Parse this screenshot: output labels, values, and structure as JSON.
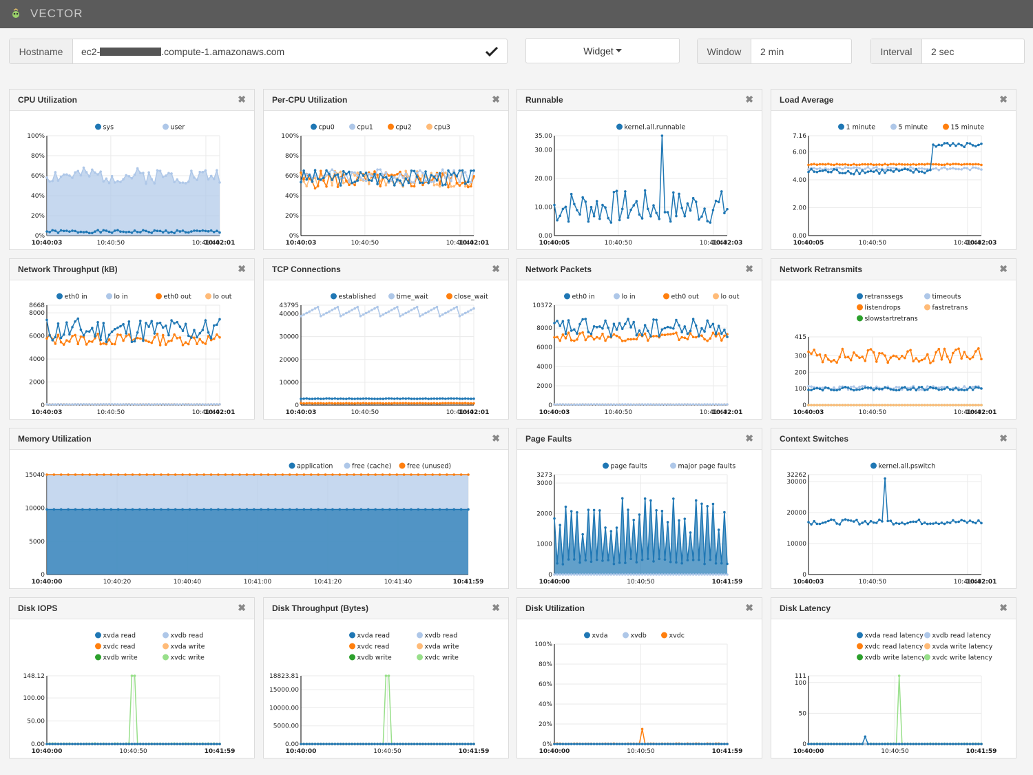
{
  "app": {
    "title": "VECTOR"
  },
  "controls": {
    "hostname_label": "Hostname",
    "hostname_prefix": "ec2-",
    "hostname_suffix": ".compute-1.amazonaws.com",
    "widget_label": "Widget",
    "window_label": "Window",
    "window_value": "2 min",
    "interval_label": "Interval",
    "interval_value": "2 sec"
  },
  "colors": {
    "blue": "#1f77b4",
    "lightblue": "#aec7e8",
    "orange": "#ff7f0e",
    "peach": "#ffbb78",
    "green": "#2ca02c",
    "lightgreen": "#98df8a"
  },
  "panels": [
    {
      "title": "CPU Utilization"
    },
    {
      "title": "Per-CPU Utilization"
    },
    {
      "title": "Runnable"
    },
    {
      "title": "Load Average"
    },
    {
      "title": "Network Throughput (kB)"
    },
    {
      "title": "TCP Connections"
    },
    {
      "title": "Network Packets"
    },
    {
      "title": "Network Retransmits"
    },
    {
      "title": "Memory Utilization"
    },
    {
      "title": "Page Faults"
    },
    {
      "title": "Context Switches"
    },
    {
      "title": "Disk IOPS"
    },
    {
      "title": "Disk Throughput (Bytes)"
    },
    {
      "title": "Disk Utilization"
    },
    {
      "title": "Disk Latency"
    }
  ],
  "close_glyph": "✖",
  "chart_data": [
    {
      "type": "area",
      "title": "CPU Utilization",
      "ylim": [
        0,
        1
      ],
      "y_ticks": [
        "0%",
        "20%",
        "40%",
        "60%",
        "80%",
        "100%"
      ],
      "y_tick_values": [
        0,
        0.2,
        0.4,
        0.6,
        0.8,
        1.0
      ],
      "x_ticks": [
        "10:40:03",
        "10:40:50",
        "10:41:40",
        "10:42:01"
      ],
      "series": [
        {
          "name": "sys",
          "color": "#1f77b4",
          "base": 0.04,
          "amp": 0.015,
          "seed": 1
        },
        {
          "name": "user",
          "color": "#aec7e8",
          "base": 0.6,
          "amp": 0.08,
          "seed": 2,
          "stacked_area": true
        }
      ]
    },
    {
      "type": "line",
      "title": "Per-CPU Utilization",
      "ylim": [
        0,
        1
      ],
      "y_ticks": [
        "0%",
        "20%",
        "40%",
        "60%",
        "80%",
        "100%"
      ],
      "y_tick_values": [
        0,
        0.2,
        0.4,
        0.6,
        0.8,
        1.0
      ],
      "x_ticks": [
        "10:40:03",
        "10:40:50",
        "10:41:40",
        "10:42:01"
      ],
      "series": [
        {
          "name": "cpu0",
          "color": "#1f77b4",
          "base": 0.58,
          "amp": 0.08,
          "seed": 3
        },
        {
          "name": "cpu1",
          "color": "#aec7e8",
          "base": 0.6,
          "amp": 0.07,
          "seed": 4
        },
        {
          "name": "cpu2",
          "color": "#ff7f0e",
          "base": 0.56,
          "amp": 0.09,
          "seed": 5
        },
        {
          "name": "cpu3",
          "color": "#ffbb78",
          "base": 0.57,
          "amp": 0.08,
          "seed": 6
        }
      ]
    },
    {
      "type": "line",
      "title": "Runnable",
      "ylim": [
        0,
        35
      ],
      "y_ticks": [
        "0.00",
        "10.00",
        "20.00",
        "30.00",
        "35.00"
      ],
      "y_tick_values": [
        0,
        10,
        20,
        30,
        35
      ],
      "x_ticks": [
        "10:40:05",
        "10:40:50",
        "10:41:40",
        "10:42:03"
      ],
      "series": [
        {
          "name": "kernel.all.runnable",
          "color": "#1f77b4",
          "base": 10,
          "amp": 6,
          "seed": 7,
          "spike": [
            0.62,
            35
          ]
        }
      ]
    },
    {
      "type": "line",
      "title": "Load Average",
      "ylim": [
        0,
        7.16
      ],
      "y_ticks": [
        "0.00",
        "2.00",
        "4.00",
        "6.00",
        "7.16"
      ],
      "y_tick_values": [
        0,
        2,
        4,
        6,
        7.16
      ],
      "x_ticks": [
        "10:40:05",
        "10:40:50",
        "10:41:40",
        "10:42:03"
      ],
      "series": [
        {
          "name": "1 minute",
          "color": "#1f77b4",
          "base": 4.6,
          "amp": 0.2,
          "seed": 8,
          "step": [
            0.72,
            6.5
          ]
        },
        {
          "name": "5 minute",
          "color": "#aec7e8",
          "base": 4.8,
          "amp": 0.1,
          "seed": 9
        },
        {
          "name": "15 minute",
          "color": "#ff7f0e",
          "base": 5.1,
          "amp": 0.04,
          "seed": 10
        }
      ]
    },
    {
      "type": "line",
      "title": "Network Throughput (kB)",
      "ylim": [
        0,
        8668
      ],
      "y_ticks": [
        "0",
        "2000",
        "4000",
        "6000",
        "8000",
        "8668"
      ],
      "y_tick_values": [
        0,
        2000,
        4000,
        6000,
        8000,
        8668
      ],
      "x_ticks": [
        "10:40:03",
        "10:40:50",
        "10:41:40",
        "10:42:01"
      ],
      "series": [
        {
          "name": "eth0 in",
          "color": "#1f77b4",
          "base": 6500,
          "amp": 1100,
          "seed": 11
        },
        {
          "name": "lo in",
          "color": "#aec7e8",
          "base": 60,
          "amp": 10,
          "seed": 12
        },
        {
          "name": "eth0 out",
          "color": "#ff7f0e",
          "base": 5700,
          "amp": 500,
          "seed": 13
        },
        {
          "name": "lo out",
          "color": "#ffbb78",
          "base": 60,
          "amp": 10,
          "seed": 14
        }
      ]
    },
    {
      "type": "line",
      "title": "TCP Connections",
      "ylim": [
        0,
        43795
      ],
      "y_ticks": [
        "0",
        "10000",
        "20000",
        "30000",
        "40000",
        "43795"
      ],
      "y_tick_values": [
        0,
        10000,
        20000,
        30000,
        40000,
        43795
      ],
      "x_ticks": [
        "10:40:03",
        "10:40:50",
        "10:41:40",
        "10:42:01"
      ],
      "series": [
        {
          "name": "established",
          "color": "#1f77b4",
          "base": 2800,
          "amp": 100,
          "seed": 15
        },
        {
          "name": "time_wait",
          "color": "#aec7e8",
          "base": 41000,
          "amp": 2000,
          "seed": 16,
          "saw": true
        },
        {
          "name": "close_wait",
          "color": "#ff7f0e",
          "base": 800,
          "amp": 80,
          "seed": 17
        }
      ]
    },
    {
      "type": "line",
      "title": "Network Packets",
      "ylim": [
        0,
        10372
      ],
      "y_ticks": [
        "0",
        "2000",
        "4000",
        "6000",
        "8000",
        "10372"
      ],
      "y_tick_values": [
        0,
        2000,
        4000,
        6000,
        8000,
        10372
      ],
      "x_ticks": [
        "10:40:03",
        "10:40:50",
        "10:41:40",
        "10:42:01"
      ],
      "series": [
        {
          "name": "eth0 in",
          "color": "#1f77b4",
          "base": 8000,
          "amp": 1000,
          "seed": 18
        },
        {
          "name": "lo in",
          "color": "#aec7e8",
          "base": 60,
          "amp": 10,
          "seed": 19
        },
        {
          "name": "eth0 out",
          "color": "#ff7f0e",
          "base": 7100,
          "amp": 450,
          "seed": 20
        },
        {
          "name": "lo out",
          "color": "#ffbb78",
          "base": 60,
          "amp": 10,
          "seed": 21
        }
      ]
    },
    {
      "type": "line",
      "title": "Network Retransmits",
      "ylim": [
        0,
        415
      ],
      "y_ticks": [
        "0",
        "100",
        "200",
        "300",
        "415"
      ],
      "y_tick_values": [
        0,
        100,
        200,
        300,
        415
      ],
      "x_ticks": [
        "10:40:03",
        "10:40:50",
        "10:41:40",
        "10:42:01"
      ],
      "series": [
        {
          "name": "retranssegs",
          "color": "#1f77b4",
          "base": 100,
          "amp": 10,
          "seed": 22
        },
        {
          "name": "timeouts",
          "color": "#aec7e8",
          "base": 104,
          "amp": 12,
          "seed": 23
        },
        {
          "name": "listendrops",
          "color": "#ff7f0e",
          "base": 300,
          "amp": 45,
          "seed": 24
        },
        {
          "name": "fastretrans",
          "color": "#ffbb78",
          "base": 0,
          "amp": 0,
          "seed": 25
        },
        {
          "name": "slowstartretrans",
          "color": "#2ca02c",
          "base": 0,
          "amp": 0,
          "seed": 26
        }
      ]
    },
    {
      "type": "area",
      "title": "Memory Utilization",
      "ylim": [
        0,
        15040
      ],
      "y_ticks": [
        "0",
        "5000",
        "10000",
        "15040"
      ],
      "y_tick_values": [
        0,
        5000,
        10000,
        15040
      ],
      "x_ticks": [
        "10:40:00",
        "10:40:20",
        "10:40:40",
        "10:41:00",
        "10:41:20",
        "10:41:40",
        "10:41:59"
      ],
      "series": [
        {
          "name": "application",
          "color": "#1f77b4",
          "base": 9800,
          "amp": 0,
          "seed": 27,
          "stacked_area": true
        },
        {
          "name": "free (cache)",
          "color": "#aec7e8",
          "base": 15040,
          "amp": 0,
          "seed": 28,
          "stacked_area": true
        },
        {
          "name": "free (unused)",
          "color": "#ff7f0e",
          "base": 15040,
          "amp": 0,
          "seed": 29
        }
      ]
    },
    {
      "type": "area",
      "title": "Page Faults",
      "ylim": [
        0,
        3273
      ],
      "y_ticks": [
        "0",
        "1000",
        "2000",
        "3000",
        "3273"
      ],
      "y_tick_values": [
        0,
        1000,
        2000,
        3000,
        3273
      ],
      "x_ticks": [
        "10:40:00",
        "10:40:50",
        "10:41:59"
      ],
      "series": [
        {
          "name": "page faults",
          "color": "#1f77b4",
          "base": 1300,
          "amp": 1300,
          "seed": 30,
          "zigzag": true,
          "stacked_area": true
        },
        {
          "name": "major page faults",
          "color": "#aec7e8",
          "base": 0,
          "amp": 0,
          "seed": 31
        }
      ]
    },
    {
      "type": "line",
      "title": "Context Switches",
      "ylim": [
        0,
        32262
      ],
      "y_ticks": [
        "0",
        "10000",
        "20000",
        "30000",
        "32262"
      ],
      "y_tick_values": [
        0,
        10000,
        20000,
        30000,
        32262
      ],
      "x_ticks": [
        "10:40:03",
        "10:40:50",
        "10:41:40",
        "10:42:01"
      ],
      "series": [
        {
          "name": "kernel.all.pswitch",
          "color": "#1f77b4",
          "base": 17000,
          "amp": 800,
          "seed": 32,
          "spike": [
            0.45,
            31000
          ]
        }
      ]
    },
    {
      "type": "line",
      "title": "Disk IOPS",
      "ylim": [
        0,
        148.12
      ],
      "y_ticks": [
        "0.00",
        "50.00",
        "100.00",
        "148.12"
      ],
      "y_tick_values": [
        0,
        50,
        100,
        148.12
      ],
      "x_ticks": [
        "10:40:00",
        "10:40:50",
        "10:41:59"
      ],
      "series": [
        {
          "name": "xvda read",
          "color": "#1f77b4",
          "base": 0,
          "amp": 0,
          "seed": 33
        },
        {
          "name": "xvdb read",
          "color": "#aec7e8",
          "base": 0,
          "amp": 0,
          "seed": 34
        },
        {
          "name": "xvdc read",
          "color": "#ff7f0e",
          "base": 0,
          "amp": 0,
          "seed": 35
        },
        {
          "name": "xvda write",
          "color": "#ffbb78",
          "base": 0,
          "amp": 0,
          "seed": 36
        },
        {
          "name": "xvdb write",
          "color": "#2ca02c",
          "base": 0,
          "amp": 0,
          "seed": 37
        },
        {
          "name": "xvdc write",
          "color": "#98df8a",
          "base": 0.5,
          "amp": 0.5,
          "seed": 38,
          "spike": [
            0.5,
            148.12
          ]
        }
      ]
    },
    {
      "type": "line",
      "title": "Disk Throughput (Bytes)",
      "ylim": [
        0,
        18823.81
      ],
      "y_ticks": [
        "0.00",
        "5000.00",
        "10000.00",
        "15000.00",
        "18823.81"
      ],
      "y_tick_values": [
        0,
        5000,
        10000,
        15000,
        18823.81
      ],
      "x_ticks": [
        "10:40:00",
        "10:40:50",
        "10:41:59"
      ],
      "series": [
        {
          "name": "xvda read",
          "color": "#1f77b4",
          "base": 0,
          "amp": 0,
          "seed": 39
        },
        {
          "name": "xvdb read",
          "color": "#aec7e8",
          "base": 0,
          "amp": 0,
          "seed": 40
        },
        {
          "name": "xvdc read",
          "color": "#ff7f0e",
          "base": 0,
          "amp": 0,
          "seed": 41
        },
        {
          "name": "xvda write",
          "color": "#ffbb78",
          "base": 0,
          "amp": 0,
          "seed": 42
        },
        {
          "name": "xvdb write",
          "color": "#2ca02c",
          "base": 0,
          "amp": 0,
          "seed": 43
        },
        {
          "name": "xvdc write",
          "color": "#98df8a",
          "base": 20,
          "amp": 20,
          "seed": 44,
          "spike": [
            0.5,
            18823.81
          ]
        }
      ]
    },
    {
      "type": "line",
      "title": "Disk Utilization",
      "ylim": [
        0,
        1
      ],
      "y_ticks": [
        "0%",
        "20%",
        "40%",
        "60%",
        "80%",
        "100%"
      ],
      "y_tick_values": [
        0,
        0.2,
        0.4,
        0.6,
        0.8,
        1.0
      ],
      "x_ticks": [
        "10:40:00",
        "10:40:50",
        "10:41:59"
      ],
      "series": [
        {
          "name": "xvda",
          "color": "#1f77b4",
          "base": 0,
          "amp": 0,
          "seed": 45
        },
        {
          "name": "xvdb",
          "color": "#aec7e8",
          "base": 0,
          "amp": 0,
          "seed": 46
        },
        {
          "name": "xvdc",
          "color": "#ff7f0e",
          "base": 0.002,
          "amp": 0.002,
          "seed": 47,
          "spike": [
            0.51,
            0.15
          ]
        }
      ]
    },
    {
      "type": "line",
      "title": "Disk Latency",
      "ylim": [
        0,
        111
      ],
      "y_ticks": [
        "0",
        "50",
        "100",
        "111"
      ],
      "y_tick_values": [
        0,
        50,
        100,
        111
      ],
      "x_ticks": [
        "10:40:00",
        "10:40:50",
        "10:41:59"
      ],
      "series": [
        {
          "name": "xvda read latency",
          "color": "#1f77b4",
          "base": 0,
          "amp": 0,
          "seed": 48,
          "spike": [
            0.33,
            12
          ]
        },
        {
          "name": "xvdb read latency",
          "color": "#aec7e8",
          "base": 0,
          "amp": 0,
          "seed": 49
        },
        {
          "name": "xvdc read latency",
          "color": "#ff7f0e",
          "base": 0,
          "amp": 0,
          "seed": 50
        },
        {
          "name": "xvda write latency",
          "color": "#ffbb78",
          "base": 0,
          "amp": 0,
          "seed": 51
        },
        {
          "name": "xvdb write latency",
          "color": "#2ca02c",
          "base": 0,
          "amp": 0,
          "seed": 52
        },
        {
          "name": "xvdc write latency",
          "color": "#98df8a",
          "base": 0.3,
          "amp": 0.3,
          "seed": 53,
          "spike": [
            0.52,
            111
          ]
        }
      ]
    }
  ]
}
